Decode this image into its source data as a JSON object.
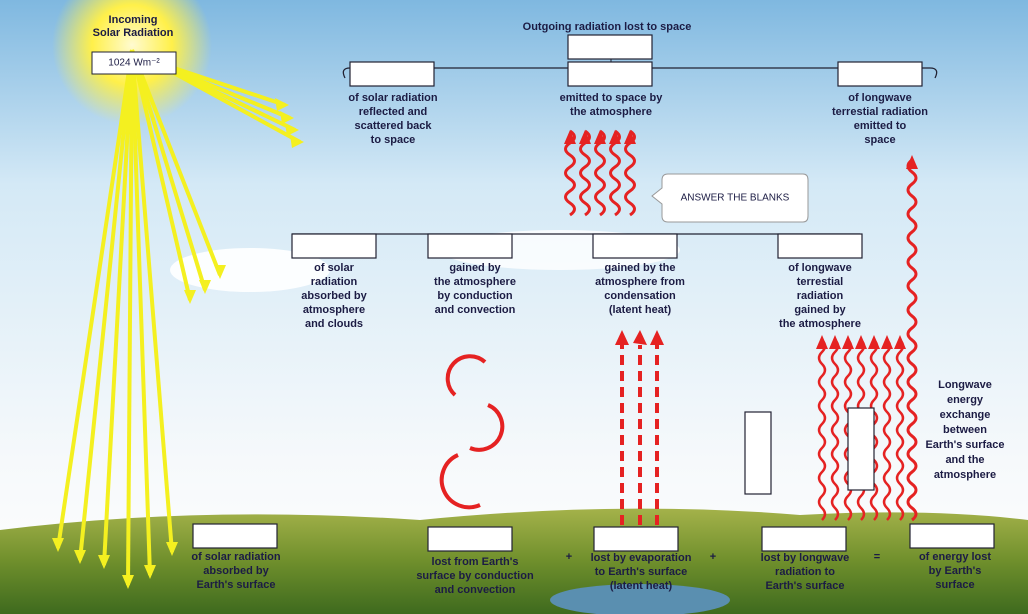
{
  "incoming": {
    "title_lines": [
      "Incoming",
      "Solar Radiation"
    ],
    "value": "1024 Wm⁻²"
  },
  "outgoing_title": "Outgoing radiation lost to space",
  "top_labels": [
    {
      "lines": [
        "of solar radiation",
        "reflected and",
        "scattered back",
        "to space"
      ]
    },
    {
      "lines": [
        "emitted to space by",
        "the atmosphere"
      ]
    },
    {
      "lines": [
        "of longwave",
        "terrestial radiation",
        "emitted to",
        "space"
      ]
    }
  ],
  "callout": "ANSWER THE BLANKS",
  "middle_labels": [
    {
      "lines": [
        "of solar",
        "radiation",
        "absorbed by",
        "atmosphere",
        "and clouds"
      ]
    },
    {
      "lines": [
        "gained by",
        "the atmosphere",
        "by conduction",
        "and convection"
      ]
    },
    {
      "lines": [
        "gained by the",
        "atmosphere from",
        "condensation",
        "(latent heat)"
      ]
    },
    {
      "lines": [
        "of longwave",
        "terrestial",
        "radiation",
        "gained by",
        "the atmosphere"
      ]
    }
  ],
  "exchange_label": {
    "lines": [
      "Longwave",
      "energy",
      "exchange",
      "between",
      "Earth's surface",
      "and the",
      "atmosphere"
    ]
  },
  "bottom_labels": [
    {
      "lines": [
        "of solar radiation",
        "absorbed by",
        "Earth's surface"
      ]
    },
    {
      "lines": [
        "lost from Earth's",
        "surface by conduction",
        "and convection"
      ]
    },
    {
      "lines": [
        "lost by evaporation",
        "to Earth's surface",
        "(latent heat)"
      ]
    },
    {
      "lines": [
        "lost by longwave",
        "radiation to",
        "Earth's surface"
      ]
    },
    {
      "lines": [
        "of energy lost",
        "by Earth's",
        "surface"
      ]
    }
  ],
  "operators": [
    "+",
    "+",
    "="
  ]
}
